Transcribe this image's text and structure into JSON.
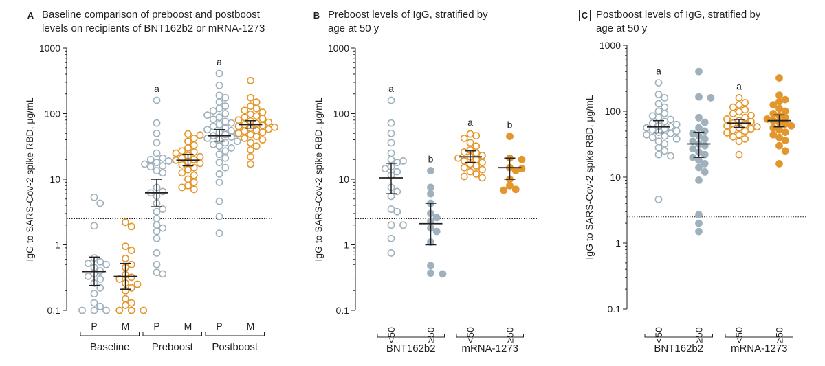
{
  "colors": {
    "pfizer": "#9fb1bc",
    "moderna": "#e3962b",
    "ink": "#231f20",
    "grid": "#d9d9d9"
  },
  "ylabel": "IgG to SARS-Cov-2 spike RBD, μg/mL",
  "ylabel_c": "IgG to SARS-Cov-2 spike RBD, μg/mL",
  "panels": [
    {
      "letter": "A",
      "title": "Baseline comparison of preboost and postboost\nlevels on recipients of BNT162b2 or mRNA-1273"
    },
    {
      "letter": "B",
      "title": "Preboost levels of IgG, stratified by\nage at 50 y"
    },
    {
      "letter": "C",
      "title": "Postboost levels of IgG, stratified by\nage at 50 y"
    }
  ],
  "chart_data": [
    {
      "type": "scatter",
      "panel": "A",
      "yscale": "log",
      "ylim": [
        0.1,
        1000
      ],
      "yticks": [
        "0.1",
        "1",
        "10",
        "100",
        "1000"
      ],
      "ylabel": "IgG to SARS-Cov-2 spike RBD, μg/mL",
      "threshold": 2.5,
      "categories": [
        "P",
        "M",
        "P",
        "M",
        "P",
        "M"
      ],
      "groups": [
        "Baseline",
        "Preboost",
        "Postboost"
      ],
      "series": [
        {
          "category": "P",
          "group": "Baseline",
          "color": "pfizer",
          "filled": false,
          "annotation": "",
          "median": 0.39,
          "ci": [
            0.24,
            0.65
          ],
          "values": [
            5.3,
            4.3,
            1.95,
            0.63,
            0.55,
            0.52,
            0.5,
            0.45,
            0.4,
            0.36,
            0.33,
            0.3,
            0.26,
            0.22,
            0.18,
            0.13,
            0.115,
            0.1,
            0.1,
            0.1
          ]
        },
        {
          "category": "M",
          "group": "Baseline",
          "color": "moderna",
          "filled": false,
          "annotation": "",
          "median": 0.33,
          "ci": [
            0.21,
            0.52
          ],
          "values": [
            2.2,
            1.9,
            0.95,
            0.82,
            0.62,
            0.5,
            0.45,
            0.35,
            0.32,
            0.3,
            0.26,
            0.25,
            0.22,
            0.2,
            0.15,
            0.13,
            0.12,
            0.1,
            0.1,
            0.1
          ]
        },
        {
          "category": "P",
          "group": "Preboost",
          "color": "pfizer",
          "filled": false,
          "annotation": "a",
          "median": 6.2,
          "ci": [
            3.8,
            10
          ],
          "values": [
            160,
            72,
            50,
            36,
            25,
            21,
            20,
            19,
            18,
            17,
            16,
            15.5,
            13.5,
            12.5,
            7.5,
            6.5,
            6.2,
            5.5,
            4.3,
            3.5,
            3.2,
            2.5,
            2.0,
            1.8,
            1.6,
            1.25,
            0.75,
            0.5,
            0.38,
            0.36
          ]
        },
        {
          "category": "M",
          "group": "Preboost",
          "color": "moderna",
          "filled": false,
          "annotation": "",
          "median": 19.5,
          "ci": [
            16,
            24
          ],
          "values": [
            49,
            47,
            42,
            38,
            33,
            30,
            27,
            26,
            25,
            23,
            22,
            21,
            20,
            19.5,
            18.5,
            17.5,
            16.5,
            15,
            14,
            12.5,
            11.5,
            10,
            9,
            8,
            7.5,
            7
          ]
        },
        {
          "category": "P",
          "group": "Postboost",
          "color": "pfizer",
          "filled": false,
          "annotation": "a",
          "median": 46,
          "ci": [
            38,
            57
          ],
          "values": [
            410,
            270,
            190,
            175,
            150,
            130,
            120,
            110,
            100,
            95,
            88,
            82,
            76,
            72,
            68,
            64,
            60,
            57,
            55,
            52,
            50,
            48,
            46,
            44,
            42,
            40,
            38,
            36,
            34,
            32,
            30,
            27,
            24,
            21,
            18,
            15,
            12,
            9,
            4.6,
            2.7,
            1.5
          ]
        },
        {
          "category": "M",
          "group": "Postboost",
          "color": "moderna",
          "filled": false,
          "annotation": "",
          "median": 68,
          "ci": [
            60,
            78
          ],
          "values": [
            320,
            175,
            150,
            130,
            120,
            112,
            105,
            98,
            92,
            88,
            84,
            80,
            77,
            74,
            71,
            68,
            66,
            64,
            62,
            60,
            58,
            56,
            54,
            52,
            50,
            48,
            45,
            42,
            40,
            36,
            32,
            28,
            22,
            17
          ]
        }
      ]
    },
    {
      "type": "scatter",
      "panel": "B",
      "yscale": "log",
      "ylim": [
        0.1,
        1000
      ],
      "yticks": [
        "0.1",
        "1",
        "10",
        "100",
        "1000"
      ],
      "ylabel": "IgG to SARS-Cov-2 spike RBD, μg/mL",
      "threshold": 2.5,
      "categories": [
        "<50",
        "≥50",
        "<50",
        "≥50"
      ],
      "groups": [
        "BNT162b2",
        "mRNA-1273"
      ],
      "series": [
        {
          "category": "<50",
          "group": "BNT162b2",
          "color": "pfizer",
          "filled": false,
          "annotation": "a",
          "median": 10.5,
          "ci": [
            6,
            17.5
          ],
          "values": [
            160,
            72,
            50,
            36,
            25,
            20,
            19,
            18,
            15.5,
            14.5,
            13,
            11.5,
            7.5,
            6.5,
            5.5,
            3.5,
            3.2,
            2.0,
            2.0,
            1.25,
            0.75
          ]
        },
        {
          "category": "≥50",
          "group": "BNT162b2",
          "color": "pfizer",
          "filled": true,
          "annotation": "b",
          "median": 2.1,
          "ci": [
            1.0,
            4.3
          ],
          "values": [
            13.5,
            7.5,
            6.0,
            4.3,
            3.0,
            2.6,
            2.3,
            1.8,
            1.6,
            1.1,
            0.48,
            0.37,
            0.36
          ]
        },
        {
          "category": "<50",
          "group": "mRNA-1273",
          "color": "moderna",
          "filled": false,
          "annotation": "a",
          "median": 22,
          "ci": [
            18,
            27
          ],
          "values": [
            49,
            46,
            42,
            36,
            32,
            28,
            26,
            25,
            23,
            22,
            21,
            20,
            19,
            18,
            17,
            16,
            15,
            14,
            13,
            12,
            11,
            10.5
          ]
        },
        {
          "category": "≥50",
          "group": "mRNA-1273",
          "color": "moderna",
          "filled": true,
          "annotation": "b",
          "median": 15,
          "ci": [
            10,
            21
          ],
          "values": [
            45,
            21,
            20,
            15,
            14.5,
            13.5,
            10,
            8,
            7,
            6.8
          ]
        }
      ]
    },
    {
      "type": "scatter",
      "panel": "C",
      "yscale": "log",
      "ylim": [
        0.1,
        1000
      ],
      "yticks": [
        "0.1",
        "1",
        "10",
        "100",
        "1000"
      ],
      "ylabel": "IgG to SARS-Cov-2 spike RBD, μg/mL",
      "threshold": 2.5,
      "categories": [
        "<50",
        "≥50",
        "<50",
        "≥50"
      ],
      "groups": [
        "BNT162b2",
        "mRNA-1273"
      ],
      "series": [
        {
          "category": "<50",
          "group": "BNT162b2",
          "color": "pfizer",
          "filled": false,
          "annotation": "a",
          "median": 58,
          "ci": [
            47,
            72
          ],
          "values": [
            270,
            180,
            160,
            130,
            115,
            100,
            92,
            85,
            80,
            75,
            70,
            66,
            63,
            60,
            58,
            56,
            54,
            52,
            50,
            48,
            46,
            44,
            42,
            40,
            38,
            35,
            32,
            28,
            25,
            22,
            21,
            4.6
          ]
        },
        {
          "category": "≥50",
          "group": "BNT162b2",
          "color": "pfizer",
          "filled": true,
          "annotation": "",
          "median": 32,
          "ci": [
            20,
            48
          ],
          "values": [
            400,
            165,
            160,
            80,
            68,
            56,
            50,
            46,
            42,
            38,
            35,
            32,
            30,
            27,
            24,
            22,
            20,
            18,
            16,
            14,
            12,
            9,
            2.7,
            2.0,
            1.5
          ]
        },
        {
          "category": "<50",
          "group": "mRNA-1273",
          "color": "moderna",
          "filled": false,
          "annotation": "a",
          "median": 66,
          "ci": [
            57,
            75
          ],
          "values": [
            160,
            135,
            125,
            115,
            105,
            98,
            92,
            86,
            80,
            76,
            72,
            69,
            66,
            63,
            60,
            58,
            56,
            54,
            52,
            50,
            47,
            44,
            41,
            38,
            35,
            22
          ]
        },
        {
          "category": "≥50",
          "group": "mRNA-1273",
          "color": "moderna",
          "filled": true,
          "annotation": "",
          "median": 72,
          "ci": [
            58,
            88
          ],
          "values": [
            320,
            175,
            150,
            140,
            125,
            110,
            100,
            92,
            86,
            80,
            76,
            72,
            68,
            64,
            60,
            56,
            52,
            48,
            44,
            40,
            36,
            30,
            25,
            16
          ]
        }
      ]
    }
  ]
}
